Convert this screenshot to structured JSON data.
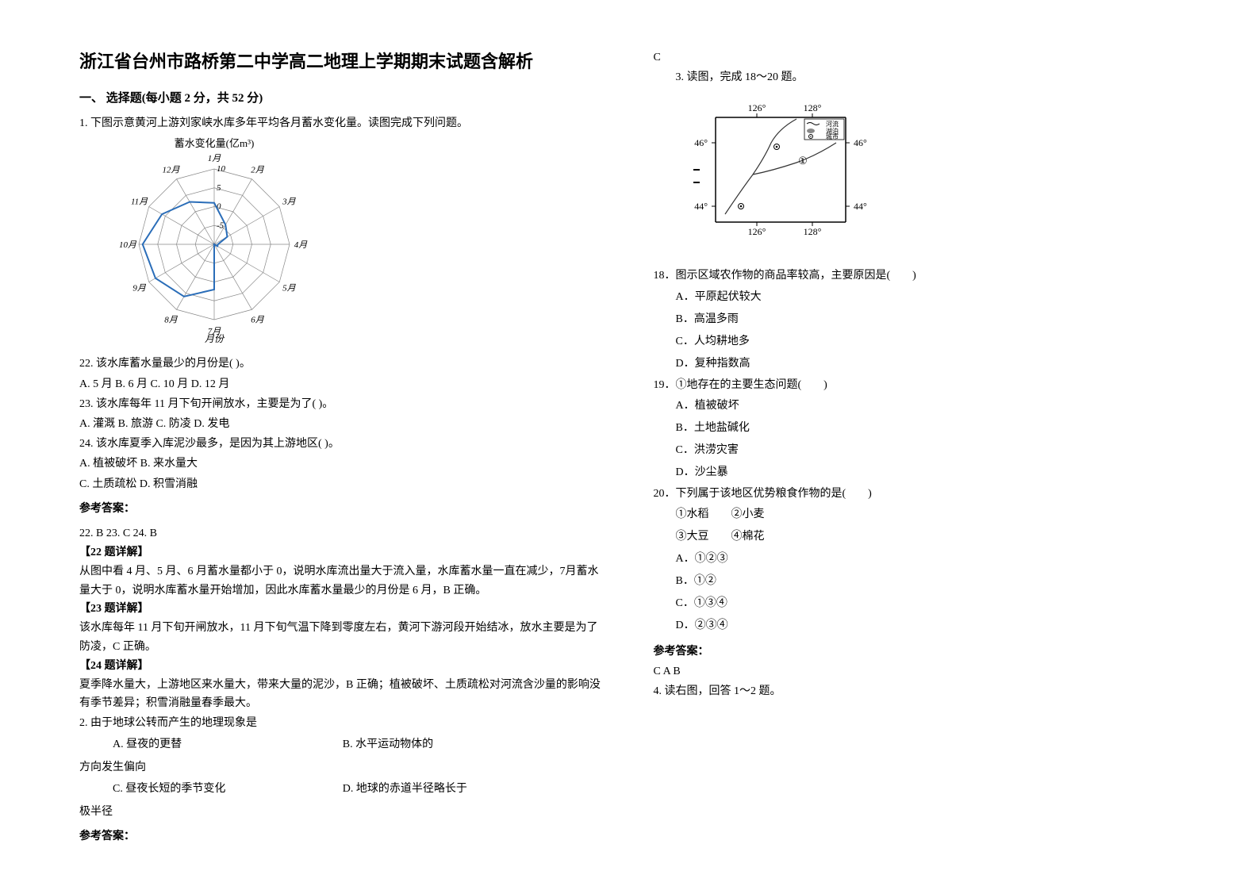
{
  "title": "浙江省台州市路桥第二中学高二地理上学期期末试题含解析",
  "section1": "一、 选择题(每小题 2 分，共 52 分)",
  "q1_intro": "1. 下图示意黄河上游刘家峡水库多年平均各月蓄水变化量。读图完成下列问题。",
  "chart": {
    "caption": "蓄水变化量(亿m³)",
    "months": [
      "1月",
      "2月",
      "3月",
      "4月",
      "5月",
      "6月",
      "7月",
      "8月",
      "9月",
      "10月",
      "11月",
      "12月"
    ],
    "rings": [
      "10",
      "5",
      "0",
      "-5"
    ],
    "footer": "月份",
    "line_color": "#2a6db8",
    "grid_color": "#888888",
    "values": [
      1,
      -4,
      -6,
      -9,
      -9,
      -10,
      2,
      6,
      8,
      9,
      6,
      3
    ]
  },
  "q22": "22. 该水库蓄水量最少的月份是(    )。",
  "q22_opts": "A. 5 月    B. 6 月    C. 10 月    D. 12 月",
  "q23": "23. 该水库每年 11 月下旬开闸放水，主要是为了(    )。",
  "q23_opts": "A. 灌溉    B. 旅游    C. 防凌    D. 发电",
  "q24": "24. 该水库夏季入库泥沙最多，是因为其上游地区(    )。",
  "q24_opts1": "A. 植被破坏    B. 来水量大",
  "q24_opts2": "C. 土质疏松    D. 积雪消融",
  "ans1_heading": "参考答案：",
  "ans1_line": "22. B    23. C    24. B",
  "expl22_h": "【22 题详解】",
  "expl22_t": "从图中看 4 月、5 月、6 月蓄水量都小于 0，说明水库流出量大于流入量，水库蓄水量一直在减少，7月蓄水量大于 0，说明水库蓄水量开始增加，因此水库蓄水量最少的月份是 6 月，B 正确。",
  "expl23_h": "【23 题详解】",
  "expl23_t": "该水库每年 11 月下旬开闸放水，11 月下旬气温下降到零度左右，黄河下游河段开始结冰，放水主要是为了防凌，C 正确。",
  "expl24_h": "【24 题详解】",
  "expl24_t": "夏季降水量大，上游地区来水量大，带来大量的泥沙，B 正确；植被破坏、土质疏松对河流含沙量的影响没有季节差异；积雪消融量春季最大。",
  "q2": "2. 由于地球公转而产生的地理现象是",
  "q2_a": "A. 昼夜的更替",
  "q2_b": "B. 水平运动物体的",
  "q2_b2": "方向发生偏向",
  "q2_c": "C. 昼夜长短的季节变化",
  "q2_d": "D. 地球的赤道半径略长于",
  "q2_d2": "极半径",
  "ans2_heading": "参考答案：",
  "ans2_val": "C",
  "q3_intro": "3. 读图，完成 18～20 题。",
  "map": {
    "lons": [
      "126°",
      "128°"
    ],
    "lats": [
      "46°",
      "44°"
    ],
    "legend_river": "河流",
    "legend_lake": "湖泊",
    "legend_city": "城市",
    "marker": "①",
    "border_color": "#000000",
    "river_color": "#333333"
  },
  "q18": "18．图示区域农作物的商品率较高，主要原因是(　　)",
  "q18_a": "A．平原起伏较大",
  "q18_b": "B．高温多雨",
  "q18_c": "C．人均耕地多",
  "q18_d": "D．复种指数高",
  "q19": "19．①地存在的主要生态问题(　　)",
  "q19_a": "A．植被破坏",
  "q19_b": "B．土地盐碱化",
  "q19_c": "C．洪涝灾害",
  "q19_d": "D．沙尘暴",
  "q20": "20．下列属于该地区优势粮食作物的是(　　)",
  "q20_1": "①水稻　　②小麦",
  "q20_2": "③大豆　　④棉花",
  "q20_a": "A．①②③",
  "q20_b": "B．①②",
  "q20_c": "C．①③④",
  "q20_d": "D．②③④",
  "ans3_heading": "参考答案：",
  "ans3_val": "C  A  B",
  "q4": "4. 读右图，回答 1～2 题。"
}
